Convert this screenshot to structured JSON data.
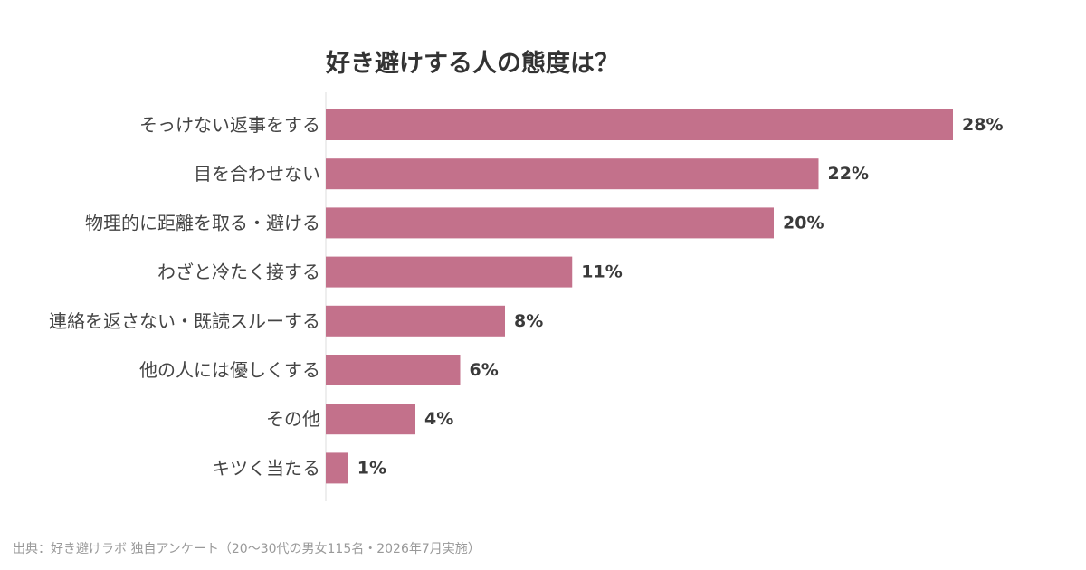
{
  "chart_data": {
    "type": "bar",
    "orientation": "horizontal",
    "title": "好き避けする人の態度は？",
    "categories": [
      "そっけない返事をする",
      "目を合わせない",
      "物理的に距離を取る・避ける",
      "わざと冷たく接する",
      "連絡を返さない・既読スルーする",
      "他の人には優しくする",
      "その他",
      "キツく当たる"
    ],
    "values": [
      28,
      22,
      20,
      11,
      8,
      6,
      4,
      1
    ],
    "value_labels": [
      "28%",
      "22%",
      "20%",
      "11%",
      "8%",
      "6%",
      "4%",
      "1%"
    ],
    "unit": "%",
    "xlim": [
      0,
      32
    ],
    "grid": false,
    "legend": "none",
    "bar_color": "#c3718b"
  },
  "source_note": "出典：好き避けラボ 独自アンケート（20〜30代の男女115名・2026年7月実施）",
  "colors": {
    "bar": "#c3718b",
    "title_text": "#333333",
    "category_text": "#444444",
    "value_text": "#3a3a3a",
    "axis_line": "#dddddd",
    "footnote_text": "#999999"
  }
}
